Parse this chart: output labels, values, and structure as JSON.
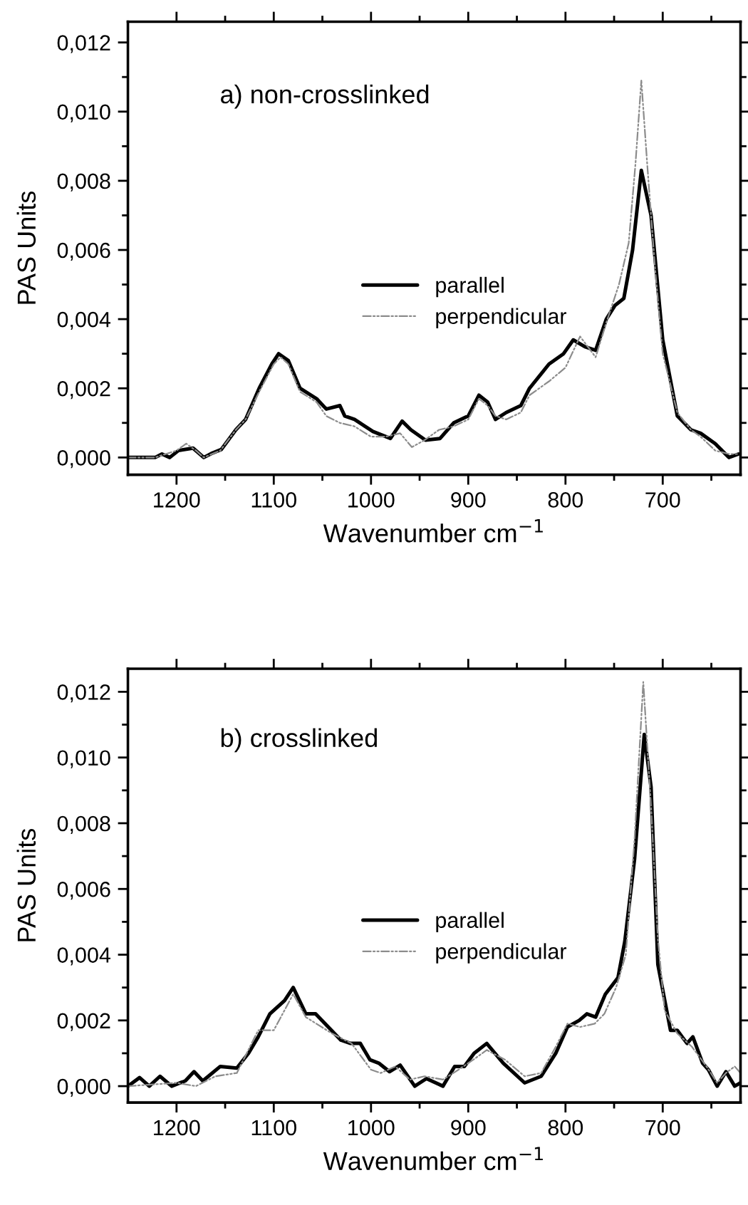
{
  "chart_data": [
    {
      "type": "line",
      "title": "a) non-crosslinked",
      "xlabel": "Wavenumber cm$^{−1}$",
      "ylabel": "PAS Units",
      "xlim": [
        1250,
        620
      ],
      "ylim": [
        -0.0005,
        0.0126
      ],
      "xticks": [
        1200,
        {
          "value": 1150,
          "label": null
        },
        1100,
        {
          "value": 1050,
          "label": null
        },
        1000,
        {
          "value": 950,
          "label": null
        },
        900,
        {
          "value": 850,
          "label": null
        },
        800,
        {
          "value": 750,
          "label": null
        },
        700,
        {
          "value": 650,
          "label": null
        }
      ],
      "yticks": [
        {
          "value": 0.0,
          "label": "0,000"
        },
        {
          "value": 0.001,
          "label": null
        },
        {
          "value": 0.002,
          "label": "0,002"
        },
        {
          "value": 0.003,
          "label": null
        },
        {
          "value": 0.004,
          "label": "0,004"
        },
        {
          "value": 0.005,
          "label": null
        },
        {
          "value": 0.006,
          "label": "0,006"
        },
        {
          "value": 0.007,
          "label": null
        },
        {
          "value": 0.008,
          "label": "0,008"
        },
        {
          "value": 0.009,
          "label": null
        },
        {
          "value": 0.01,
          "label": "0,010"
        },
        {
          "value": 0.011,
          "label": null
        },
        {
          "value": 0.012,
          "label": "0,012"
        }
      ],
      "legend": "center",
      "grid": false,
      "series": [
        {
          "name": "parallel",
          "color": "#000000",
          "line_style": "solid",
          "x": [
            1250,
            1222,
            1215,
            1207,
            1198,
            1183,
            1172,
            1163,
            1154,
            1139,
            1129,
            1115,
            1102,
            1095,
            1085,
            1073,
            1056,
            1046,
            1032,
            1027,
            1017,
            998,
            980,
            968,
            959,
            944,
            929,
            915,
            900,
            889,
            880,
            872,
            861,
            846,
            837,
            817,
            802,
            792,
            780,
            769,
            758,
            749,
            740,
            731,
            722,
            712,
            700,
            685,
            671,
            661,
            646,
            632,
            622
          ],
          "values": [
            0.0,
            0.0,
            0.0001,
            0.0,
            0.0002,
            0.00027,
            0.0,
            0.00013,
            0.00023,
            0.0008,
            0.0011,
            0.002,
            0.0027,
            0.003,
            0.0028,
            0.002,
            0.0017,
            0.0014,
            0.0015,
            0.0012,
            0.0011,
            0.00075,
            0.00055,
            0.00105,
            0.0008,
            0.0005,
            0.00055,
            0.001,
            0.0012,
            0.0018,
            0.0016,
            0.0011,
            0.0013,
            0.0015,
            0.002,
            0.0027,
            0.003,
            0.0034,
            0.0032,
            0.0031,
            0.004,
            0.0044,
            0.0046,
            0.006,
            0.0083,
            0.007,
            0.0034,
            0.0012,
            0.0008,
            0.0007,
            0.0004,
            0.0,
            0.0001
          ]
        },
        {
          "name": "perpendicular",
          "color": "#8c8c8c",
          "line_style": "dotted",
          "x": [
            1250,
            1222,
            1200,
            1190,
            1180,
            1172,
            1155,
            1139,
            1129,
            1115,
            1100,
            1093,
            1085,
            1073,
            1056,
            1046,
            1032,
            1017,
            1000,
            985,
            970,
            958,
            945,
            930,
            915,
            900,
            889,
            880,
            872,
            861,
            846,
            837,
            817,
            800,
            785,
            769,
            758,
            745,
            735,
            728,
            722,
            716,
            708,
            700,
            685,
            671,
            661,
            646,
            632,
            622
          ],
          "values": [
            0.0,
            0.0,
            0.0002,
            0.0004,
            0.0002,
            0.0,
            0.0002,
            0.0008,
            0.0011,
            0.0019,
            0.0027,
            0.0029,
            0.0027,
            0.0019,
            0.0016,
            0.0012,
            0.001,
            0.0009,
            0.0006,
            0.0006,
            0.0007,
            0.0003,
            0.0005,
            0.0008,
            0.0009,
            0.0011,
            0.0017,
            0.0015,
            0.0012,
            0.0011,
            0.0013,
            0.0018,
            0.0022,
            0.0026,
            0.0035,
            0.0029,
            0.0039,
            0.005,
            0.0062,
            0.0085,
            0.0109,
            0.0085,
            0.0055,
            0.003,
            0.0013,
            0.0008,
            0.0006,
            0.0002,
            0.0001,
            0.0001
          ]
        }
      ]
    },
    {
      "type": "line",
      "title": "b) crosslinked",
      "xlabel": "Wavenumber cm$^{−1}$",
      "ylabel": "PAS Units",
      "xlim": [
        1250,
        620
      ],
      "ylim": [
        -0.0005,
        0.0127
      ],
      "xticks": [
        1200,
        {
          "value": 1150,
          "label": null
        },
        1100,
        {
          "value": 1050,
          "label": null
        },
        1000,
        {
          "value": 950,
          "label": null
        },
        900,
        {
          "value": 850,
          "label": null
        },
        800,
        {
          "value": 750,
          "label": null
        },
        700,
        {
          "value": 650,
          "label": null
        }
      ],
      "yticks": [
        {
          "value": 0.0,
          "label": "0,000"
        },
        {
          "value": 0.001,
          "label": null
        },
        {
          "value": 0.002,
          "label": "0,002"
        },
        {
          "value": 0.003,
          "label": null
        },
        {
          "value": 0.004,
          "label": "0,004"
        },
        {
          "value": 0.005,
          "label": null
        },
        {
          "value": 0.006,
          "label": "0,006"
        },
        {
          "value": 0.007,
          "label": null
        },
        {
          "value": 0.008,
          "label": "0,008"
        },
        {
          "value": 0.009,
          "label": null
        },
        {
          "value": 0.01,
          "label": "0,010"
        },
        {
          "value": 0.011,
          "label": null
        },
        {
          "value": 0.012,
          "label": "0,012"
        }
      ],
      "legend": "center",
      "grid": false,
      "series": [
        {
          "name": "parallel",
          "color": "#000000",
          "line_style": "solid",
          "x": [
            1250,
            1238,
            1228,
            1217,
            1205,
            1191,
            1182,
            1173,
            1155,
            1138,
            1126,
            1116,
            1104,
            1089,
            1080,
            1067,
            1057,
            1031,
            1021,
            1011,
            1001,
            992,
            981,
            970,
            955,
            943,
            926,
            914,
            904,
            894,
            881,
            864,
            842,
            825,
            810,
            798,
            786,
            778,
            769,
            759,
            746,
            739,
            729,
            719,
            712,
            705,
            692,
            685,
            675,
            669,
            659,
            653,
            644,
            635,
            626,
            620
          ],
          "values": [
            0.0,
            0.00026,
            0.0,
            0.0003,
            0.0,
            0.00016,
            0.00044,
            0.00016,
            0.0006,
            0.00055,
            0.001,
            0.0015,
            0.0022,
            0.0026,
            0.003,
            0.0022,
            0.0022,
            0.0014,
            0.0013,
            0.0013,
            0.0008,
            0.0007,
            0.00044,
            0.00064,
            0.0,
            0.00023,
            0.0,
            0.0006,
            0.0006,
            0.001,
            0.0013,
            0.0007,
            0.0001,
            0.0003,
            0.001,
            0.0018,
            0.002,
            0.0022,
            0.0021,
            0.0028,
            0.0033,
            0.0044,
            0.0069,
            0.0107,
            0.0091,
            0.0037,
            0.0017,
            0.0017,
            0.0013,
            0.0015,
            0.0007,
            0.0005,
            0.0,
            0.00044,
            0.0,
            0.0001
          ]
        },
        {
          "name": "perpendicular",
          "color": "#8c8c8c",
          "line_style": "dotted",
          "x": [
            1250,
            1200,
            1180,
            1160,
            1138,
            1116,
            1100,
            1080,
            1067,
            1040,
            1020,
            1000,
            990,
            975,
            960,
            945,
            926,
            910,
            895,
            881,
            862,
            842,
            825,
            810,
            798,
            785,
            770,
            760,
            748,
            738,
            729,
            720,
            712,
            705,
            698,
            685,
            670,
            655,
            644,
            635,
            626,
            620
          ],
          "values": [
            0.0,
            0.0001,
            0.0,
            0.0003,
            0.0004,
            0.0017,
            0.0017,
            0.0028,
            0.0021,
            0.0016,
            0.0013,
            0.0005,
            0.0004,
            0.0006,
            0.0002,
            0.0003,
            0.0002,
            0.0005,
            0.0008,
            0.0011,
            0.0008,
            0.0003,
            0.0004,
            0.0012,
            0.0019,
            0.0018,
            0.0019,
            0.0022,
            0.003,
            0.004,
            0.0075,
            0.0123,
            0.0085,
            0.0045,
            0.0023,
            0.0016,
            0.0012,
            0.0006,
            0.0001,
            0.0004,
            0.0006,
            0.0004
          ]
        }
      ]
    }
  ]
}
